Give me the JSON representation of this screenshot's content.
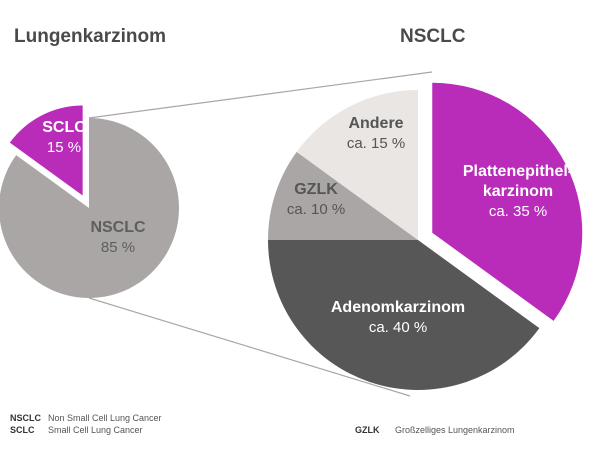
{
  "chart_data": [
    {
      "type": "pie",
      "title": "Lungenkarzinom",
      "slices": [
        {
          "label": "NSCLC",
          "value_label": "85 %",
          "value": 85,
          "color": "#aaa6a6",
          "text_color": "#5e5e5e"
        },
        {
          "label": "SCLC",
          "value_label": "15 %",
          "value": 15,
          "color": "#b92bb9",
          "text_color": "#ffffff",
          "exploded": true
        }
      ]
    },
    {
      "type": "pie",
      "title": "NSCLC",
      "slices": [
        {
          "label": "Plattenepithel-\nkarzinom",
          "value_label": "ca. 35 %",
          "value": 35,
          "color": "#b92bb9",
          "text_color": "#ffffff",
          "exploded": true
        },
        {
          "label": "Adenomkarzinom",
          "value_label": "ca. 40 %",
          "value": 40,
          "color": "#575757",
          "text_color": "#ffffff"
        },
        {
          "label": "GZLK",
          "value_label": "ca. 10 %",
          "value": 10,
          "color": "#aaa6a6",
          "text_color": "#555555"
        },
        {
          "label": "Andere",
          "value_label": "ca. 15 %",
          "value": 15,
          "color": "#e9e6e4",
          "text_color": "#555555"
        }
      ]
    }
  ],
  "legend": {
    "left": [
      {
        "abbr": "NSCLC",
        "text": "Non Small Cell Lung Cancer"
      },
      {
        "abbr": "SCLC",
        "text": "Small Cell Lung Cancer"
      }
    ],
    "right": [
      {
        "abbr": "GZLK",
        "text": "Großzelliges Lungenkarzinom"
      }
    ]
  }
}
